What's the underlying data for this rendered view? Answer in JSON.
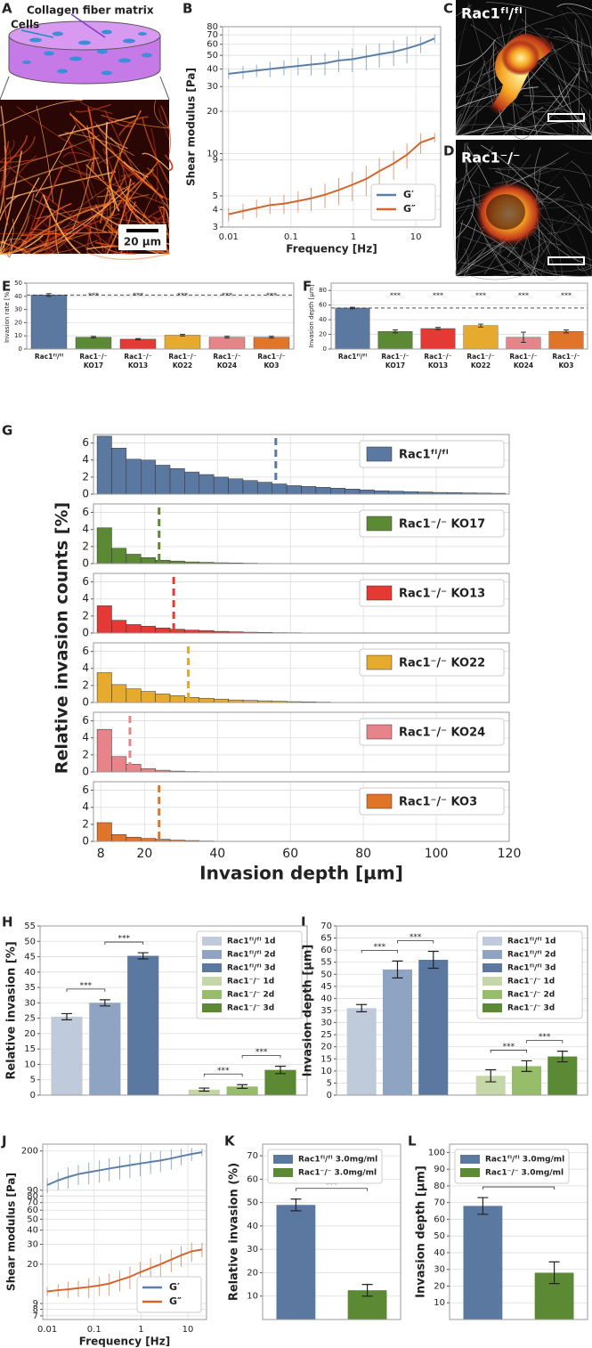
{
  "panel_letters": [
    "A",
    "B",
    "C",
    "D",
    "E",
    "F",
    "G",
    "H",
    "I",
    "J",
    "K",
    "L"
  ],
  "illustration": {
    "matrix_label": "Collagen fiber matrix",
    "cells_label": "Cells",
    "scale_bar": "20 µm"
  },
  "images": [
    {
      "label": "Rac1ᶠˡ/ᶠˡ"
    },
    {
      "label": "Rac1⁻/⁻"
    }
  ],
  "chart_data": [
    {
      "type": "line",
      "xlabel": "Frequency [Hz]",
      "ylabel": "Shear modulus [Pa]",
      "log_x": true,
      "log_y": true,
      "grid": true,
      "legend": "lower right",
      "xlim": [
        0.008,
        25
      ],
      "ylim": [
        3,
        80
      ],
      "xticks": [
        0.01,
        0.1,
        1,
        10
      ],
      "yticks": [
        3,
        4,
        5,
        9,
        10,
        20,
        30,
        40,
        50,
        60,
        70,
        80
      ],
      "x": [
        0.01,
        0.017,
        0.028,
        0.046,
        0.077,
        0.13,
        0.21,
        0.35,
        0.58,
        0.96,
        1.6,
        2.6,
        4.4,
        7.2,
        12,
        20
      ],
      "series": [
        {
          "name": "G′",
          "color": "#5b7fa8",
          "values": [
            37,
            38,
            39,
            40,
            41,
            42,
            43,
            44,
            46,
            47,
            49,
            51,
            53,
            56,
            60,
            66
          ],
          "errors": [
            3,
            4,
            4,
            5,
            5,
            6,
            7,
            8,
            8,
            9,
            10,
            10,
            11,
            12,
            8,
            5
          ]
        },
        {
          "name": "G″",
          "color": "#d2662e",
          "values": [
            3.7,
            3.9,
            4.1,
            4.3,
            4.4,
            4.6,
            4.8,
            5.1,
            5.5,
            6.0,
            6.6,
            7.5,
            8.5,
            9.8,
            12,
            13
          ],
          "errors": [
            0.4,
            0.5,
            0.6,
            0.6,
            0.7,
            0.8,
            0.9,
            1,
            1.2,
            1.4,
            1.6,
            1.8,
            2,
            2,
            2,
            1
          ]
        }
      ]
    },
    {
      "type": "bar",
      "ylabel": "Invasion rate [%]",
      "grid": true,
      "reference_line": true,
      "categories": [
        [
          "Rac1ᶠˡ/ᶠˡ"
        ],
        [
          "Rac1⁻/⁻",
          "KO17"
        ],
        [
          "Rac1⁻/⁻",
          "KO13"
        ],
        [
          "Rac1⁻/⁻",
          "KO22"
        ],
        [
          "Rac1⁻/⁻",
          "KO24"
        ],
        [
          "Rac1⁻/⁻",
          "KO3"
        ]
      ],
      "values": [
        41,
        9,
        7.5,
        10.5,
        9,
        9
      ],
      "errors": [
        1,
        0.6,
        0.5,
        0.6,
        0.7,
        0.7
      ],
      "colors": [
        "#5a78a0",
        "#5c8a34",
        "#e53935",
        "#e6aa2e",
        "#e8838a",
        "#e07428"
      ],
      "ylim": [
        0,
        50
      ],
      "yticks": [
        0,
        10,
        20,
        30,
        40,
        50
      ],
      "annotations": [
        "***",
        "***",
        "***",
        "***",
        "***"
      ]
    },
    {
      "type": "bar",
      "ylabel": "Invasion depth [µm]",
      "grid": true,
      "reference_line": true,
      "categories": [
        [
          "Rac1ᶠˡ/ᶠˡ"
        ],
        [
          "Rac1⁻/⁻",
          "KO17"
        ],
        [
          "Rac1⁻/⁻",
          "KO13"
        ],
        [
          "Rac1⁻/⁻",
          "KO22"
        ],
        [
          "Rac1⁻/⁻",
          "KO24"
        ],
        [
          "Rac1⁻/⁻",
          "KO3"
        ]
      ],
      "values": [
        56,
        24,
        28,
        32,
        16,
        24
      ],
      "errors": [
        1,
        2,
        1.5,
        2,
        7,
        2
      ],
      "colors": [
        "#5a78a0",
        "#5c8a34",
        "#e53935",
        "#e6aa2e",
        "#e8838a",
        "#e07428"
      ],
      "ylim": [
        0,
        90
      ],
      "yticks": [
        0,
        20,
        40,
        60,
        80
      ],
      "annotations": [
        "***",
        "***",
        "***",
        "***",
        "***"
      ]
    },
    {
      "type": "histogram",
      "xlabel": "Invasion depth [µm]",
      "ylabel": "Relative invasion counts [%]",
      "grid": true,
      "xlim": [
        6,
        120
      ],
      "xticks": [
        8,
        20,
        40,
        60,
        80,
        100,
        120
      ],
      "ylim": [
        0,
        7
      ],
      "yticks": [
        0,
        2,
        4,
        6
      ],
      "panels": [
        {
          "name": "Rac1ᶠˡ/ᶠˡ",
          "color": "#5a78a0",
          "mean": 56,
          "bins": [
            7,
            11,
            15,
            19,
            23,
            27,
            31,
            35,
            39,
            43,
            47,
            51,
            55,
            59,
            63,
            67,
            71,
            75,
            79,
            83,
            87,
            91,
            95,
            99,
            103,
            107,
            111,
            115,
            119
          ],
          "counts": [
            6.8,
            5.4,
            4.1,
            4.0,
            3.4,
            3.0,
            2.6,
            2.3,
            2.0,
            1.8,
            1.6,
            1.4,
            1.2,
            1.0,
            0.9,
            0.8,
            0.7,
            0.6,
            0.5,
            0.4,
            0.35,
            0.3,
            0.25,
            0.2,
            0.18,
            0.15,
            0.12,
            0.1
          ]
        },
        {
          "name": "Rac1⁻/⁻ KO17",
          "color": "#5c8a34",
          "mean": 24,
          "bins": [
            7,
            11,
            15,
            19,
            23,
            27,
            31,
            35,
            39,
            43,
            47,
            51,
            55
          ],
          "counts": [
            4.2,
            1.8,
            1.1,
            0.7,
            0.4,
            0.3,
            0.2,
            0.15,
            0.1,
            0.08,
            0.05,
            0.03
          ]
        },
        {
          "name": "Rac1⁻/⁻ KO13",
          "color": "#e53935",
          "mean": 28,
          "bins": [
            7,
            11,
            15,
            19,
            23,
            27,
            31,
            35,
            39,
            43,
            47,
            51,
            55,
            59,
            63
          ],
          "counts": [
            3.2,
            1.5,
            1.0,
            0.8,
            0.6,
            0.45,
            0.35,
            0.3,
            0.2,
            0.15,
            0.1,
            0.08,
            0.05,
            0.04
          ]
        },
        {
          "name": "Rac1⁻/⁻ KO22",
          "color": "#e6aa2e",
          "mean": 32,
          "bins": [
            7,
            11,
            15,
            19,
            23,
            27,
            31,
            35,
            39,
            43,
            47,
            51,
            55,
            59,
            63,
            67,
            71
          ],
          "counts": [
            3.5,
            2.1,
            1.6,
            1.3,
            1.0,
            0.8,
            0.6,
            0.5,
            0.4,
            0.3,
            0.25,
            0.2,
            0.15,
            0.1,
            0.08,
            0.05
          ]
        },
        {
          "name": "Rac1⁻/⁻ KO24",
          "color": "#e8838a",
          "mean": 16,
          "bins": [
            7,
            11,
            15,
            19,
            23,
            27,
            31,
            35,
            39
          ],
          "counts": [
            5.0,
            1.8,
            0.9,
            0.4,
            0.2,
            0.1,
            0.05,
            0.03
          ]
        },
        {
          "name": "Rac1⁻/⁻ KO3",
          "color": "#e07428",
          "mean": 24,
          "bins": [
            7,
            11,
            15,
            19,
            23,
            27,
            31,
            35,
            39
          ],
          "counts": [
            2.2,
            0.8,
            0.5,
            0.35,
            0.25,
            0.15,
            0.1,
            0.05
          ]
        }
      ]
    },
    {
      "type": "grouped_bar",
      "ylabel": "Relative invasion [%]",
      "grid": true,
      "legend": "upper right",
      "ylim": [
        0,
        55
      ],
      "yticks": [
        0,
        5,
        10,
        15,
        20,
        25,
        30,
        35,
        40,
        45,
        50,
        55
      ],
      "annotations": [
        "***",
        "***",
        "***",
        "***"
      ],
      "series": [
        {
          "name": "Rac1ᶠˡ/ᶠˡ 1d",
          "color": "#bfcadb",
          "values": [
            25.5
          ],
          "errors": [
            1
          ]
        },
        {
          "name": "Rac1ᶠˡ/ᶠˡ 2d",
          "color": "#8fa4c2",
          "values": [
            30
          ],
          "errors": [
            1
          ]
        },
        {
          "name": "Rac1ᶠˡ/ᶠˡ 3d",
          "color": "#5a78a0",
          "values": [
            45.3
          ],
          "errors": [
            1
          ]
        },
        {
          "name": "Rac1⁻/⁻ 1d",
          "color": "#c5d6a8",
          "values": [
            1.8
          ],
          "errors": [
            0.5
          ]
        },
        {
          "name": "Rac1⁻/⁻ 2d",
          "color": "#97bd6a",
          "values": [
            2.8
          ],
          "errors": [
            0.6
          ]
        },
        {
          "name": "Rac1⁻/⁻ 3d",
          "color": "#5c8a34",
          "values": [
            8.2
          ],
          "errors": [
            1.2
          ]
        }
      ]
    },
    {
      "type": "grouped_bar",
      "ylabel": "Invasion depth [µm]",
      "grid": true,
      "legend": "upper right",
      "ylim": [
        0,
        70
      ],
      "yticks": [
        0,
        5,
        10,
        15,
        20,
        25,
        30,
        35,
        40,
        45,
        50,
        55,
        60,
        65,
        70
      ],
      "annotations": [
        "***",
        "***",
        "***",
        "***"
      ],
      "series": [
        {
          "name": "Rac1ᶠˡ/ᶠˡ 1d",
          "color": "#bfcadb",
          "values": [
            36
          ],
          "errors": [
            1.5
          ]
        },
        {
          "name": "Rac1ᶠˡ/ᶠˡ 2d",
          "color": "#8fa4c2",
          "values": [
            52
          ],
          "errors": [
            3.5
          ]
        },
        {
          "name": "Rac1ᶠˡ/ᶠˡ 3d",
          "color": "#5a78a0",
          "values": [
            56
          ],
          "errors": [
            3.5
          ]
        },
        {
          "name": "Rac1⁻/⁻ 1d",
          "color": "#c5d6a8",
          "values": [
            8
          ],
          "errors": [
            2.5
          ]
        },
        {
          "name": "Rac1⁻/⁻ 2d",
          "color": "#97bd6a",
          "values": [
            12
          ],
          "errors": [
            2.2
          ]
        },
        {
          "name": "Rac1⁻/⁻ 3d",
          "color": "#5c8a34",
          "values": [
            16
          ],
          "errors": [
            2.2
          ]
        }
      ]
    },
    {
      "type": "line",
      "xlabel": "Frequency [Hz]",
      "ylabel": "Shear modulus [Pa]",
      "log_x": true,
      "log_y": true,
      "grid": true,
      "legend": "lower right",
      "xlim": [
        0.008,
        25
      ],
      "ylim": [
        6.5,
        230
      ],
      "xticks": [
        0.01,
        0.1,
        1,
        10
      ],
      "yticks": [
        7,
        8,
        9,
        20,
        30,
        40,
        50,
        60,
        70,
        80,
        90,
        200
      ],
      "x": [
        0.01,
        0.017,
        0.028,
        0.046,
        0.077,
        0.13,
        0.21,
        0.35,
        0.58,
        0.96,
        1.6,
        2.6,
        4.4,
        7.2,
        12,
        20
      ],
      "series": [
        {
          "name": "G′",
          "color": "#5b7fa8",
          "values": [
            100,
            110,
            118,
            125,
            130,
            135,
            140,
            145,
            150,
            155,
            160,
            165,
            172,
            180,
            188,
            195
          ],
          "errors": [
            15,
            20,
            25,
            25,
            28,
            30,
            32,
            33,
            35,
            35,
            35,
            35,
            35,
            30,
            25,
            15
          ]
        },
        {
          "name": "G″",
          "color": "#d2662e",
          "values": [
            11.5,
            11.8,
            12,
            12.3,
            12.6,
            13,
            13.5,
            14.5,
            15.5,
            17,
            18.5,
            20,
            22,
            24,
            26,
            27
          ],
          "errors": [
            1,
            1.5,
            2,
            2,
            2.5,
            2.5,
            3,
            3,
            3.5,
            4,
            4,
            4.5,
            5,
            5,
            5,
            4
          ]
        }
      ]
    },
    {
      "type": "grouped_bar",
      "ylabel": "Relative invasion (%)",
      "grid": true,
      "legend": "upper left",
      "ylim": [
        0,
        75
      ],
      "yticks": [
        10,
        20,
        30,
        40,
        50,
        60,
        70
      ],
      "annotations": [
        "***"
      ],
      "series": [
        {
          "name": "Rac1ᶠˡ/ᶠˡ 3.0mg/ml",
          "color": "#5a78a0",
          "values": [
            49
          ],
          "errors": [
            2.5
          ]
        },
        {
          "name": "Rac1⁻/⁻ 3.0mg/ml",
          "color": "#5c8a34",
          "values": [
            12.5
          ],
          "errors": [
            2.5
          ]
        }
      ]
    },
    {
      "type": "grouped_bar",
      "ylabel": "Invasion depth [µm]",
      "grid": true,
      "legend": "upper left",
      "ylim": [
        0,
        105
      ],
      "yticks": [
        10,
        20,
        30,
        40,
        50,
        60,
        70,
        80,
        90,
        100
      ],
      "annotations": [
        "***"
      ],
      "series": [
        {
          "name": "Rac1ᶠˡ/ᶠˡ 3.0mg/ml",
          "color": "#5a78a0",
          "values": [
            68
          ],
          "errors": [
            5
          ]
        },
        {
          "name": "Rac1⁻/⁻ 3.0mg/ml",
          "color": "#5c8a34",
          "values": [
            28
          ],
          "errors": [
            6.5
          ]
        }
      ]
    }
  ]
}
